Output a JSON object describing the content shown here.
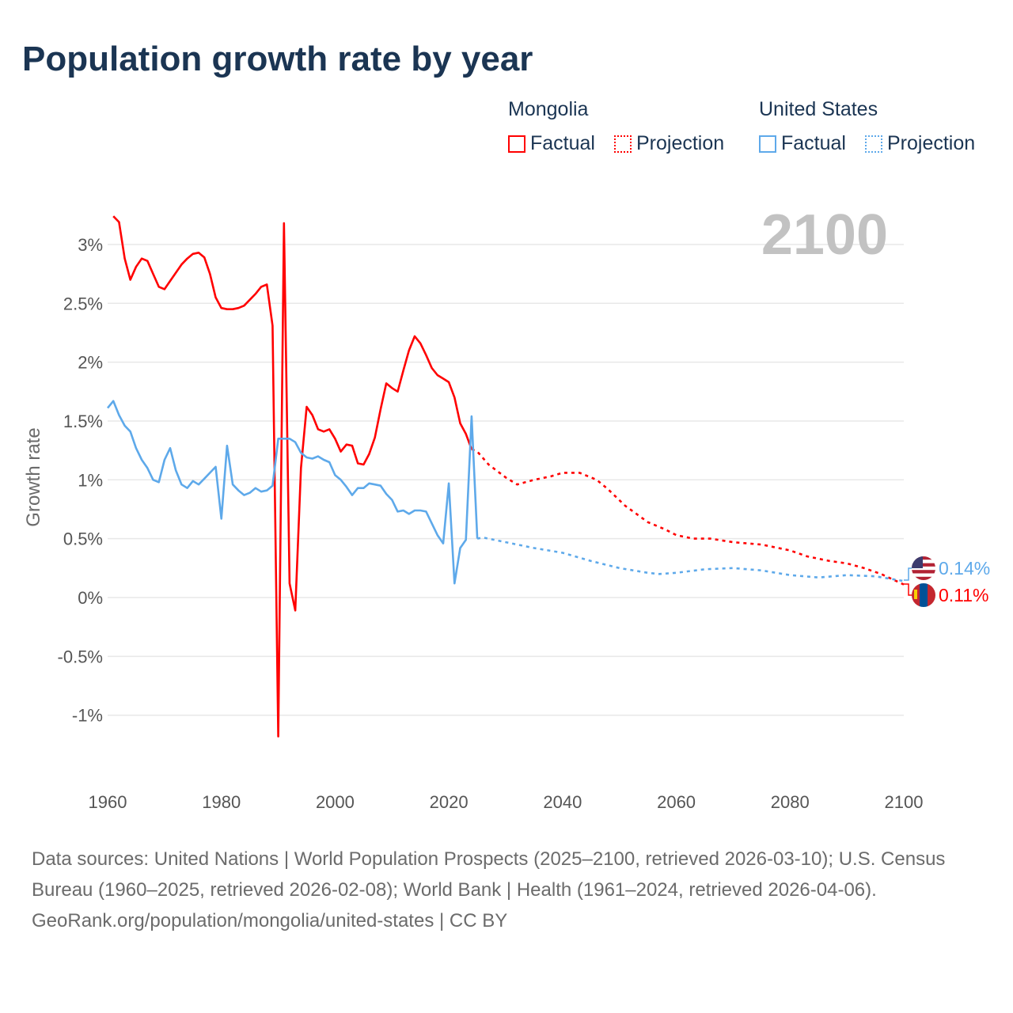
{
  "title": "Population growth rate by year",
  "year_display": "2100",
  "legend": [
    {
      "name": "Mongolia",
      "factual": "Factual",
      "projection": "Projection",
      "color": "#ff0000"
    },
    {
      "name": "United States",
      "factual": "Factual",
      "projection": "Projection",
      "color": "#5ea9ea"
    }
  ],
  "end_labels": {
    "us": "0.14%",
    "mongolia": "0.11%"
  },
  "footer": {
    "sources": "Data sources: United Nations | World Population Prospects (2025–2100, retrieved 2026-03-10); U.S. Census Bureau (1960–2025, retrieved 2026-02-08); World Bank | Health (1961–2024, retrieved 2026-04-06).",
    "credit": "GeoRank.org/population/mongolia/united-states | CC BY"
  },
  "chart_data": {
    "type": "line",
    "title": "Population growth rate by year",
    "xlabel": "",
    "ylabel": "Growth rate",
    "xlim": [
      1960,
      2100
    ],
    "ylim": [
      -1.35,
      3.35
    ],
    "x_ticks": [
      "1960",
      "1980",
      "2000",
      "2020",
      "2040",
      "2060",
      "2080",
      "2100"
    ],
    "y_ticks": [
      {
        "v": 3,
        "label": "3%"
      },
      {
        "v": 2.5,
        "label": "2.5%"
      },
      {
        "v": 2,
        "label": "2%"
      },
      {
        "v": 1.5,
        "label": "1.5%"
      },
      {
        "v": 1,
        "label": "1%"
      },
      {
        "v": 0.5,
        "label": "0.5%"
      },
      {
        "v": 0,
        "label": "0%"
      },
      {
        "v": -0.5,
        "label": "-0.5%"
      },
      {
        "v": -1,
        "label": "-1%"
      }
    ],
    "grid": true,
    "series": [
      {
        "name": "Mongolia Factual",
        "color": "#ff0000",
        "dashed": false,
        "x": [
          1961,
          1962,
          1963,
          1964,
          1965,
          1966,
          1967,
          1968,
          1969,
          1970,
          1971,
          1972,
          1973,
          1974,
          1975,
          1976,
          1977,
          1978,
          1979,
          1980,
          1981,
          1982,
          1983,
          1984,
          1985,
          1986,
          1987,
          1988,
          1989,
          1990,
          1991,
          1992,
          1993,
          1994,
          1995,
          1996,
          1997,
          1998,
          1999,
          2000,
          2001,
          2002,
          2003,
          2004,
          2005,
          2006,
          2007,
          2008,
          2009,
          2010,
          2011,
          2012,
          2013,
          2014,
          2015,
          2016,
          2017,
          2018,
          2019,
          2020,
          2021,
          2022,
          2023,
          2024
        ],
        "y": [
          3.24,
          3.19,
          2.88,
          2.7,
          2.81,
          2.88,
          2.86,
          2.75,
          2.64,
          2.62,
          2.69,
          2.76,
          2.83,
          2.88,
          2.92,
          2.93,
          2.89,
          2.75,
          2.55,
          2.46,
          2.45,
          2.45,
          2.46,
          2.48,
          2.53,
          2.58,
          2.64,
          2.66,
          2.31,
          -1.18,
          3.18,
          0.12,
          -0.11,
          1.1,
          1.62,
          1.55,
          1.43,
          1.41,
          1.43,
          1.35,
          1.24,
          1.3,
          1.29,
          1.14,
          1.13,
          1.22,
          1.36,
          1.6,
          1.82,
          1.78,
          1.75,
          1.93,
          2.1,
          2.22,
          2.16,
          2.06,
          1.95,
          1.89,
          1.86,
          1.83,
          1.7,
          1.48,
          1.39,
          1.26
        ]
      },
      {
        "name": "Mongolia Projection",
        "color": "#ff0000",
        "dashed": true,
        "x": [
          2024,
          2025,
          2027,
          2030,
          2032,
          2035,
          2038,
          2040,
          2043,
          2046,
          2048,
          2051,
          2055,
          2058,
          2060,
          2063,
          2066,
          2070,
          2075,
          2080,
          2083,
          2087,
          2090,
          2093,
          2096,
          2100
        ],
        "y": [
          1.26,
          1.24,
          1.13,
          1.02,
          0.96,
          1.0,
          1.03,
          1.06,
          1.06,
          1.0,
          0.92,
          0.78,
          0.64,
          0.58,
          0.53,
          0.5,
          0.5,
          0.47,
          0.45,
          0.4,
          0.35,
          0.31,
          0.29,
          0.25,
          0.2,
          0.11
        ]
      },
      {
        "name": "United States Factual",
        "color": "#5ea9ea",
        "dashed": false,
        "x": [
          1960,
          1961,
          1962,
          1963,
          1964,
          1965,
          1966,
          1967,
          1968,
          1969,
          1970,
          1971,
          1972,
          1973,
          1974,
          1975,
          1976,
          1977,
          1978,
          1979,
          1980,
          1981,
          1982,
          1983,
          1984,
          1985,
          1986,
          1987,
          1988,
          1989,
          1990,
          1991,
          1992,
          1993,
          1994,
          1995,
          1996,
          1997,
          1998,
          1999,
          2000,
          2001,
          2002,
          2003,
          2004,
          2005,
          2006,
          2007,
          2008,
          2009,
          2010,
          2011,
          2012,
          2013,
          2014,
          2015,
          2016,
          2017,
          2018,
          2019,
          2020,
          2021,
          2022,
          2023,
          2024,
          2025
        ],
        "y": [
          1.61,
          1.67,
          1.55,
          1.46,
          1.41,
          1.27,
          1.17,
          1.1,
          1.0,
          0.98,
          1.17,
          1.27,
          1.08,
          0.96,
          0.93,
          0.99,
          0.96,
          1.01,
          1.06,
          1.11,
          0.67,
          1.29,
          0.96,
          0.91,
          0.87,
          0.89,
          0.93,
          0.9,
          0.91,
          0.95,
          1.35,
          1.35,
          1.35,
          1.32,
          1.23,
          1.19,
          1.18,
          1.2,
          1.17,
          1.15,
          1.04,
          1.0,
          0.94,
          0.87,
          0.93,
          0.93,
          0.97,
          0.96,
          0.95,
          0.88,
          0.83,
          0.73,
          0.74,
          0.71,
          0.74,
          0.74,
          0.73,
          0.63,
          0.53,
          0.46,
          0.97,
          0.12,
          0.42,
          0.49,
          1.54,
          0.5
        ]
      },
      {
        "name": "United States Projection",
        "color": "#5ea9ea",
        "dashed": true,
        "x": [
          2025,
          2026,
          2030,
          2035,
          2040,
          2045,
          2050,
          2055,
          2057,
          2060,
          2065,
          2070,
          2075,
          2080,
          2085,
          2090,
          2095,
          2100
        ],
        "y": [
          0.5,
          0.51,
          0.47,
          0.42,
          0.38,
          0.31,
          0.25,
          0.21,
          0.2,
          0.21,
          0.24,
          0.25,
          0.23,
          0.19,
          0.17,
          0.19,
          0.18,
          0.14
        ]
      }
    ]
  }
}
